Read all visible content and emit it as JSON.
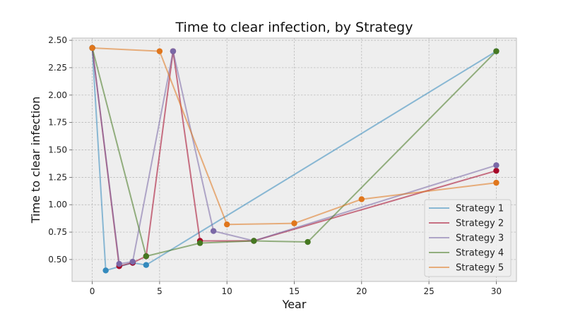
{
  "chart_data": {
    "type": "line",
    "title": "Time to clear infection, by Strategy",
    "xlabel": "Year",
    "ylabel": "Time to clear infection",
    "xlim": [
      -1.5,
      31.5
    ],
    "ylim": [
      0.3,
      2.52
    ],
    "xticks": [
      0,
      5,
      10,
      15,
      20,
      25,
      30
    ],
    "yticks": [
      0.5,
      0.75,
      1.0,
      1.25,
      1.5,
      1.75,
      2.0,
      2.25,
      2.5
    ],
    "yticks_format": 2,
    "grid": true,
    "legend": "lower right",
    "series": [
      {
        "name": "Strategy 1",
        "color": "#348abd",
        "marker_color": "#348abd",
        "x": [
          0,
          1,
          3,
          4,
          30
        ],
        "y": [
          2.43,
          0.4,
          0.47,
          0.45,
          2.4
        ]
      },
      {
        "name": "Strategy 2",
        "color": "#a60628",
        "marker_color": "#a60628",
        "x": [
          0,
          2,
          3,
          4,
          6,
          8,
          12,
          30
        ],
        "y": [
          2.43,
          0.44,
          0.47,
          0.53,
          2.4,
          0.67,
          0.67,
          1.31
        ]
      },
      {
        "name": "Strategy 3",
        "color": "#7a68a6",
        "marker_color": "#7a68a6",
        "x": [
          0,
          2,
          3,
          6,
          9,
          12,
          30
        ],
        "y": [
          2.43,
          0.46,
          0.48,
          2.4,
          0.76,
          0.67,
          1.36
        ]
      },
      {
        "name": "Strategy 4",
        "color": "#467821",
        "marker_color": "#467821",
        "x": [
          0,
          4,
          8,
          12,
          16,
          30
        ],
        "y": [
          2.43,
          0.53,
          0.65,
          0.67,
          0.66,
          2.4
        ]
      },
      {
        "name": "Strategy 5",
        "color": "#e0761c",
        "marker_color": "#e0761c",
        "x": [
          0,
          5,
          10,
          15,
          20,
          30
        ],
        "y": [
          2.43,
          2.4,
          0.82,
          0.83,
          1.05,
          1.2
        ]
      }
    ]
  }
}
